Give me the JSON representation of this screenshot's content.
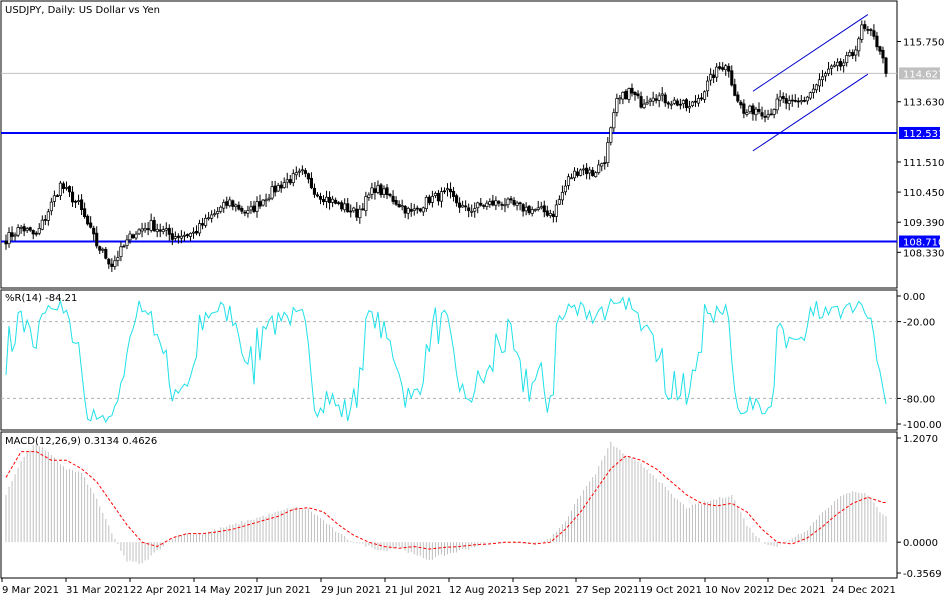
{
  "header": {
    "main_title": "USDJPY, Daily:  US Dollar vs Yen",
    "wr_title": "%R(14) -84.21",
    "macd_title": "MACD(12,26,9) 0.3134 0.4626"
  },
  "colors": {
    "background": "#ffffff",
    "border": "#000000",
    "candle": "#000000",
    "hline": "#0000ff",
    "current_price_line": "#c0c0c0",
    "channel": "#0000cc",
    "wr_line": "#1fe0e8",
    "macd_hist": "#c0c0c0",
    "macd_signal": "#ff0000",
    "dotted_level": "#b0b0b0"
  },
  "chart_data": [
    {
      "type": "candlestick",
      "symbol": "USDJPY",
      "timeframe": "Daily",
      "title": "USDJPY, Daily:  US Dollar vs Yen",
      "ylim": [
        107.25,
        117.0
      ],
      "y_ticks": [
        "115.750",
        "113.630",
        "111.510",
        "110.450",
        "109.390",
        "108.330"
      ],
      "x_ticks": [
        "9 Mar 2021",
        "31 Mar 2021",
        "22 Apr 2021",
        "14 May 2021",
        "7 Jun 2021",
        "29 Jun 2021",
        "21 Jul 2021",
        "12 Aug 2021",
        "3 Sep 2021",
        "27 Sep 2021",
        "19 Oct 2021",
        "10 Nov 2021",
        "2 Dec 2021",
        "24 Dec 2021"
      ],
      "close_anchors": [
        [
          0,
          108.8
        ],
        [
          5,
          109.2
        ],
        [
          10,
          108.9
        ],
        [
          18,
          110.7
        ],
        [
          24,
          110.0
        ],
        [
          30,
          108.6
        ],
        [
          35,
          107.9
        ],
        [
          42,
          109.0
        ],
        [
          48,
          109.3
        ],
        [
          55,
          108.9
        ],
        [
          62,
          109.0
        ],
        [
          68,
          109.6
        ],
        [
          74,
          110.1
        ],
        [
          80,
          109.7
        ],
        [
          86,
          110.3
        ],
        [
          92,
          110.8
        ],
        [
          98,
          111.1
        ],
        [
          103,
          110.4
        ],
        [
          110,
          110.0
        ],
        [
          116,
          109.7
        ],
        [
          122,
          110.6
        ],
        [
          128,
          110.2
        ],
        [
          134,
          109.7
        ],
        [
          140,
          110.2
        ],
        [
          146,
          110.4
        ],
        [
          152,
          109.8
        ],
        [
          158,
          110.0
        ],
        [
          164,
          110.1
        ],
        [
          170,
          109.9
        ],
        [
          176,
          109.8
        ],
        [
          181,
          109.7
        ],
        [
          186,
          110.9
        ],
        [
          190,
          111.3
        ],
        [
          194,
          111.1
        ],
        [
          198,
          111.6
        ],
        [
          202,
          113.6
        ],
        [
          206,
          114.0
        ],
        [
          210,
          113.6
        ],
        [
          214,
          113.9
        ],
        [
          218,
          113.7
        ],
        [
          222,
          113.6
        ],
        [
          226,
          113.4
        ],
        [
          230,
          113.9
        ],
        [
          234,
          114.6
        ],
        [
          238,
          115.0
        ],
        [
          241,
          114.0
        ],
        [
          244,
          113.2
        ],
        [
          248,
          113.4
        ],
        [
          252,
          113.2
        ],
        [
          256,
          113.7
        ],
        [
          260,
          113.5
        ],
        [
          264,
          113.7
        ],
        [
          268,
          114.2
        ],
        [
          272,
          114.7
        ],
        [
          276,
          114.9
        ],
        [
          280,
          115.3
        ],
        [
          283,
          116.2
        ],
        [
          286,
          116.0
        ],
        [
          289,
          115.5
        ],
        [
          291,
          114.63
        ]
      ],
      "last_price": "114.627",
      "horizontal_levels": [
        "112.531",
        "108.710"
      ],
      "channel": {
        "from_bar": 247,
        "to_bar": 285,
        "upper_start": 114.0,
        "upper_end": 116.7,
        "lower_start": 111.9,
        "lower_end": 114.6
      }
    },
    {
      "type": "line",
      "name": "%R(14)",
      "last_value": -84.21,
      "ylim": [
        -100,
        0
      ],
      "levels": [
        -20,
        -80
      ],
      "y_ticks": [
        "0.00",
        "-20.00",
        "-80.00",
        "-100.00"
      ]
    },
    {
      "type": "bar",
      "name": "MACD(12,26,9)",
      "macd_last": 0.3134,
      "signal_last": 0.4626,
      "ylim": [
        -0.3569,
        1.207
      ],
      "y_ticks": [
        "1.2070",
        "0.0000",
        "-0.3569"
      ],
      "macd_anchors": [
        [
          0,
          0.55
        ],
        [
          5,
          0.95
        ],
        [
          10,
          1.15
        ],
        [
          15,
          1.0
        ],
        [
          20,
          0.85
        ],
        [
          25,
          0.8
        ],
        [
          30,
          0.5
        ],
        [
          35,
          0.1
        ],
        [
          40,
          -0.22
        ],
        [
          45,
          -0.25
        ],
        [
          50,
          -0.1
        ],
        [
          55,
          0.05
        ],
        [
          60,
          0.1
        ],
        [
          65,
          0.1
        ],
        [
          70,
          0.15
        ],
        [
          75,
          0.2
        ],
        [
          80,
          0.25
        ],
        [
          85,
          0.3
        ],
        [
          90,
          0.35
        ],
        [
          95,
          0.4
        ],
        [
          100,
          0.38
        ],
        [
          105,
          0.25
        ],
        [
          110,
          0.1
        ],
        [
          115,
          0.0
        ],
        [
          120,
          -0.05
        ],
        [
          125,
          -0.1
        ],
        [
          130,
          -0.05
        ],
        [
          135,
          -0.15
        ],
        [
          140,
          -0.2
        ],
        [
          145,
          -0.15
        ],
        [
          150,
          -0.1
        ],
        [
          155,
          -0.05
        ],
        [
          160,
          0.0
        ],
        [
          165,
          0.0
        ],
        [
          170,
          0.0
        ],
        [
          175,
          -0.02
        ],
        [
          180,
          0.05
        ],
        [
          185,
          0.25
        ],
        [
          190,
          0.55
        ],
        [
          195,
          0.8
        ],
        [
          200,
          1.15
        ],
        [
          205,
          1.0
        ],
        [
          210,
          0.9
        ],
        [
          215,
          0.75
        ],
        [
          220,
          0.55
        ],
        [
          225,
          0.4
        ],
        [
          230,
          0.45
        ],
        [
          235,
          0.5
        ],
        [
          240,
          0.55
        ],
        [
          245,
          0.2
        ],
        [
          250,
          0.0
        ],
        [
          255,
          -0.05
        ],
        [
          260,
          0.05
        ],
        [
          265,
          0.15
        ],
        [
          270,
          0.35
        ],
        [
          275,
          0.5
        ],
        [
          280,
          0.6
        ],
        [
          285,
          0.55
        ],
        [
          290,
          0.31
        ]
      ],
      "signal_anchors": [
        [
          0,
          0.75
        ],
        [
          5,
          1.05
        ],
        [
          10,
          1.05
        ],
        [
          15,
          0.95
        ],
        [
          20,
          0.95
        ],
        [
          25,
          0.85
        ],
        [
          30,
          0.7
        ],
        [
          35,
          0.45
        ],
        [
          40,
          0.2
        ],
        [
          45,
          0.0
        ],
        [
          50,
          -0.05
        ],
        [
          55,
          0.05
        ],
        [
          60,
          0.1
        ],
        [
          65,
          0.1
        ],
        [
          70,
          0.12
        ],
        [
          75,
          0.15
        ],
        [
          80,
          0.2
        ],
        [
          85,
          0.25
        ],
        [
          90,
          0.3
        ],
        [
          95,
          0.38
        ],
        [
          100,
          0.4
        ],
        [
          105,
          0.35
        ],
        [
          110,
          0.2
        ],
        [
          115,
          0.08
        ],
        [
          120,
          0.0
        ],
        [
          125,
          -0.05
        ],
        [
          130,
          -0.07
        ],
        [
          135,
          -0.05
        ],
        [
          140,
          -0.08
        ],
        [
          145,
          -0.06
        ],
        [
          150,
          -0.05
        ],
        [
          155,
          -0.03
        ],
        [
          160,
          -0.02
        ],
        [
          165,
          0.0
        ],
        [
          170,
          0.0
        ],
        [
          175,
          -0.02
        ],
        [
          180,
          0.0
        ],
        [
          185,
          0.15
        ],
        [
          190,
          0.35
        ],
        [
          195,
          0.6
        ],
        [
          200,
          0.85
        ],
        [
          205,
          1.0
        ],
        [
          210,
          0.95
        ],
        [
          215,
          0.85
        ],
        [
          220,
          0.7
        ],
        [
          225,
          0.55
        ],
        [
          230,
          0.45
        ],
        [
          235,
          0.42
        ],
        [
          240,
          0.45
        ],
        [
          245,
          0.35
        ],
        [
          250,
          0.15
        ],
        [
          255,
          0.0
        ],
        [
          260,
          -0.02
        ],
        [
          265,
          0.05
        ],
        [
          270,
          0.18
        ],
        [
          275,
          0.33
        ],
        [
          280,
          0.45
        ],
        [
          285,
          0.52
        ],
        [
          290,
          0.46
        ]
      ]
    }
  ]
}
